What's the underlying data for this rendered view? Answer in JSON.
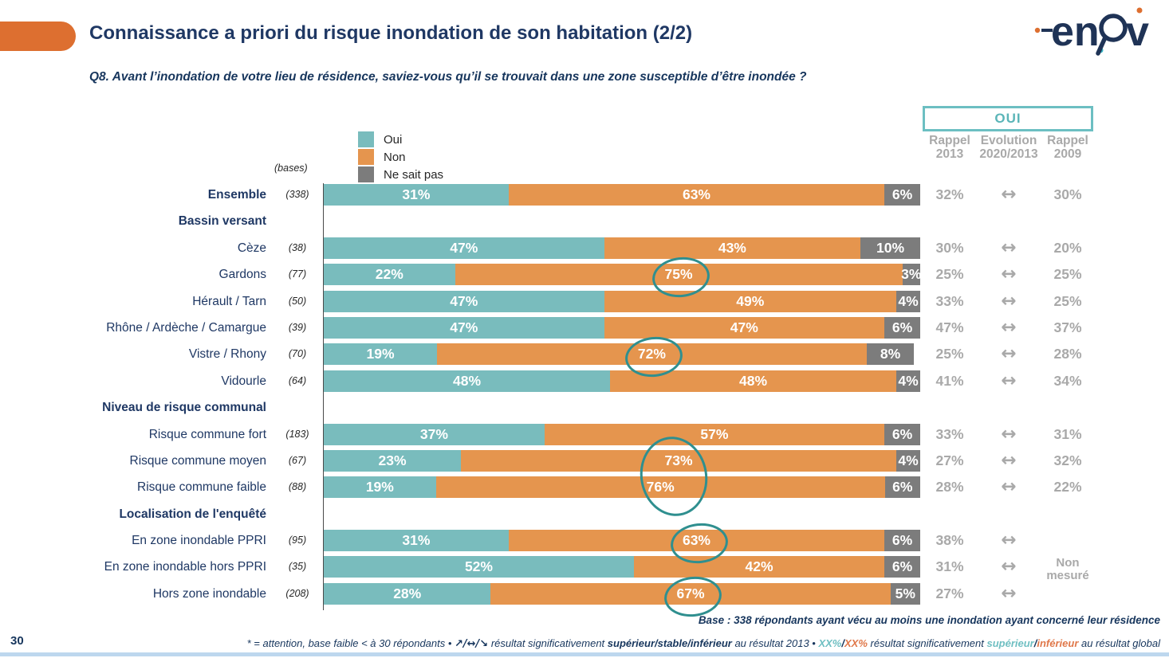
{
  "header": {
    "title": "Connaissance a priori du risque inondation de son habitation (2/2)",
    "logo_en": "en",
    "logo_v": "v"
  },
  "question": "Q8. Avant l’inondation de votre lieu de résidence, saviez-vous qu’il se trouvait dans une zone susceptible d’être inondée ?",
  "oui_box_label": "OUI",
  "bases_label": "(bases)",
  "columns": [
    {
      "line1": "Rappel",
      "line2": "2013"
    },
    {
      "line1": "Evolution",
      "line2": "2020/2013"
    },
    {
      "line1": "Rappel",
      "line2": "2009"
    }
  ],
  "chart_data": {
    "type": "bar",
    "orientation": "horizontal",
    "stacked": true,
    "unit": "%",
    "xlim": [
      0,
      100
    ],
    "series_names": [
      "Oui",
      "Non",
      "Ne sait pas"
    ],
    "colors": {
      "oui": "#79BCBD",
      "non": "#E5954E",
      "nsp": "#7C7C7C",
      "circle": "#2F8F8F",
      "navy": "#1F3864",
      "accent_orange": "#DD6F30",
      "accent_teal": "#5BB5B8",
      "column_gray": "#A9A9A9",
      "bottom_strip": "#BDD7EE"
    },
    "legend": [
      {
        "key": "oui",
        "label": "Oui"
      },
      {
        "key": "non",
        "label": "Non"
      },
      {
        "key": "nsp",
        "label": "Ne sait pas"
      }
    ],
    "rows": [
      {
        "type": "data",
        "label": "Ensemble",
        "bold": true,
        "base": "(338)",
        "oui": 31,
        "non": 63,
        "nsp": 6,
        "rappel2013": "32%",
        "evolution": "↔",
        "rappel2009": "30%"
      },
      {
        "type": "section",
        "label": "Bassin versant"
      },
      {
        "type": "data",
        "label": "Cèze",
        "base": "(38)",
        "oui": 47,
        "non": 43,
        "nsp": 10,
        "rappel2013": "30%",
        "evolution": "↔",
        "rappel2009": "20%"
      },
      {
        "type": "data",
        "label": "Gardons",
        "base": "(77)",
        "oui": 22,
        "non": 75,
        "nsp": 3,
        "rappel2013": "25%",
        "evolution": "↔",
        "rappel2009": "25%",
        "circle": "single"
      },
      {
        "type": "data",
        "label": "Hérault / Tarn",
        "base": "(50)",
        "oui": 47,
        "non": 49,
        "nsp": 4,
        "rappel2013": "33%",
        "evolution": "↔",
        "rappel2009": "25%"
      },
      {
        "type": "data",
        "label": "Rhône / Ardèche / Camargue",
        "base": "(39)",
        "oui": 47,
        "non": 47,
        "nsp": 6,
        "rappel2013": "47%",
        "evolution": "↔",
        "rappel2009": "37%"
      },
      {
        "type": "data",
        "label": "Vistre / Rhony",
        "base": "(70)",
        "oui": 19,
        "non": 72,
        "nsp": 8,
        "rappel2013": "25%",
        "evolution": "↔",
        "rappel2009": "28%",
        "circle": "single"
      },
      {
        "type": "data",
        "label": "Vidourle",
        "base": "(64)",
        "oui": 48,
        "non": 48,
        "nsp": 4,
        "rappel2013": "41%",
        "evolution": "↔",
        "rappel2009": "34%"
      },
      {
        "type": "section",
        "label": "Niveau de risque communal"
      },
      {
        "type": "data",
        "label": "Risque commune fort",
        "base": "(183)",
        "oui": 37,
        "non": 57,
        "nsp": 6,
        "rappel2013": "33%",
        "evolution": "↔",
        "rappel2009": "31%"
      },
      {
        "type": "data",
        "label": "Risque commune moyen",
        "base": "(67)",
        "oui": 23,
        "non": 73,
        "nsp": 4,
        "rappel2013": "27%",
        "evolution": "↔",
        "rappel2009": "32%",
        "circle": "group"
      },
      {
        "type": "data",
        "label": "Risque commune faible",
        "base": "(88)",
        "oui": 19,
        "non": 76,
        "nsp": 6,
        "rappel2013": "28%",
        "evolution": "↔",
        "rappel2009": "22%",
        "circle": "group"
      },
      {
        "type": "section",
        "label": "Localisation de l'enquêté"
      },
      {
        "type": "data",
        "label": "En zone inondable PPRI",
        "base": "(95)",
        "oui": 31,
        "non": 63,
        "nsp": 6,
        "rappel2013": "38%",
        "evolution": "↔",
        "rappel2009": "",
        "circle": "single"
      },
      {
        "type": "data",
        "label": "En zone inondable hors PPRI",
        "base": "(35)",
        "oui": 52,
        "non": 42,
        "nsp": 6,
        "rappel2013": "31%",
        "evolution": "↔",
        "rappel2009": "Non\nmesuré",
        "non_mesure": true
      },
      {
        "type": "data",
        "label": "Hors zone inondable",
        "base": "(208)",
        "oui": 28,
        "non": 67,
        "nsp": 5,
        "rappel2013": "27%",
        "evolution": "↔",
        "rappel2009": "",
        "circle": "single"
      }
    ]
  },
  "footer": {
    "page_number": "30",
    "base_note": "Base : 338 répondants ayant vécu au moins une inondation ayant concerné leur résidence",
    "note_parts": [
      {
        "t": "* = attention, base faible < à 30 répondants • ",
        "s": "plain"
      },
      {
        "t": "↗/↔/↘",
        "s": "arrows"
      },
      {
        "t": " résultat significativement ",
        "s": "plain"
      },
      {
        "t": "supérieur/stable/inférieur",
        "s": "bold"
      },
      {
        "t": " au résultat 2013 • ",
        "s": "plain"
      },
      {
        "t": "XX%",
        "s": "teal"
      },
      {
        "t": "/",
        "s": "bold"
      },
      {
        "t": "XX%",
        "s": "orange"
      },
      {
        "t": " résultat significativement ",
        "s": "plain"
      },
      {
        "t": "supérieur",
        "s": "teal"
      },
      {
        "t": "/",
        "s": "bold"
      },
      {
        "t": "inférieur",
        "s": "orange"
      },
      {
        "t": " au résultat global",
        "s": "plain"
      }
    ]
  }
}
